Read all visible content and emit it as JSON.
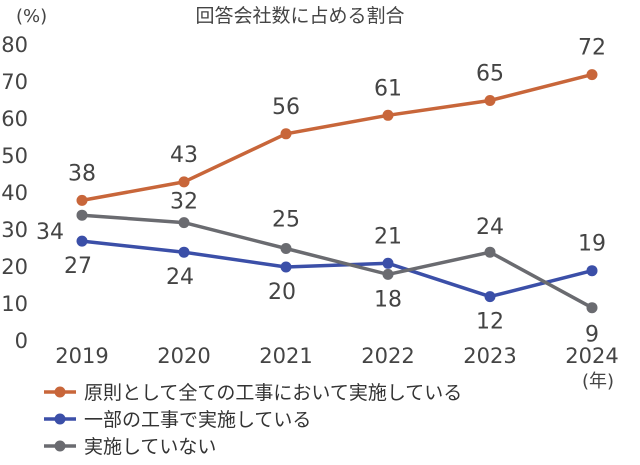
{
  "chart_data": {
    "type": "line",
    "title": "回答会社数に占める割合",
    "y_unit": "(%)",
    "x_unit": "(年)",
    "categories": [
      "2019",
      "2020",
      "2021",
      "2022",
      "2023",
      "2024"
    ],
    "ylim": [
      0,
      80
    ],
    "yticks": [
      "0",
      "10",
      "20",
      "30",
      "40",
      "50",
      "60",
      "70",
      "80"
    ],
    "grid": false,
    "legend_position": "bottom-left",
    "series": [
      {
        "name": "原則として全ての工事において実施している",
        "color": "#c8663a",
        "values": [
          38,
          43,
          56,
          61,
          65,
          72
        ],
        "labels": [
          "38",
          "43",
          "56",
          "61",
          "65",
          "72"
        ]
      },
      {
        "name": "一部の工事で実施している",
        "color": "#3b4fa8",
        "values": [
          27,
          24,
          20,
          21,
          12,
          19
        ],
        "labels": [
          "27",
          "24",
          "20",
          "21",
          "12",
          "19"
        ]
      },
      {
        "name": "実施していない",
        "color": "#6a6b70",
        "values": [
          34,
          32,
          25,
          18,
          24,
          9
        ],
        "labels": [
          "34",
          "32",
          "25",
          "18",
          "24",
          "9"
        ]
      }
    ]
  }
}
